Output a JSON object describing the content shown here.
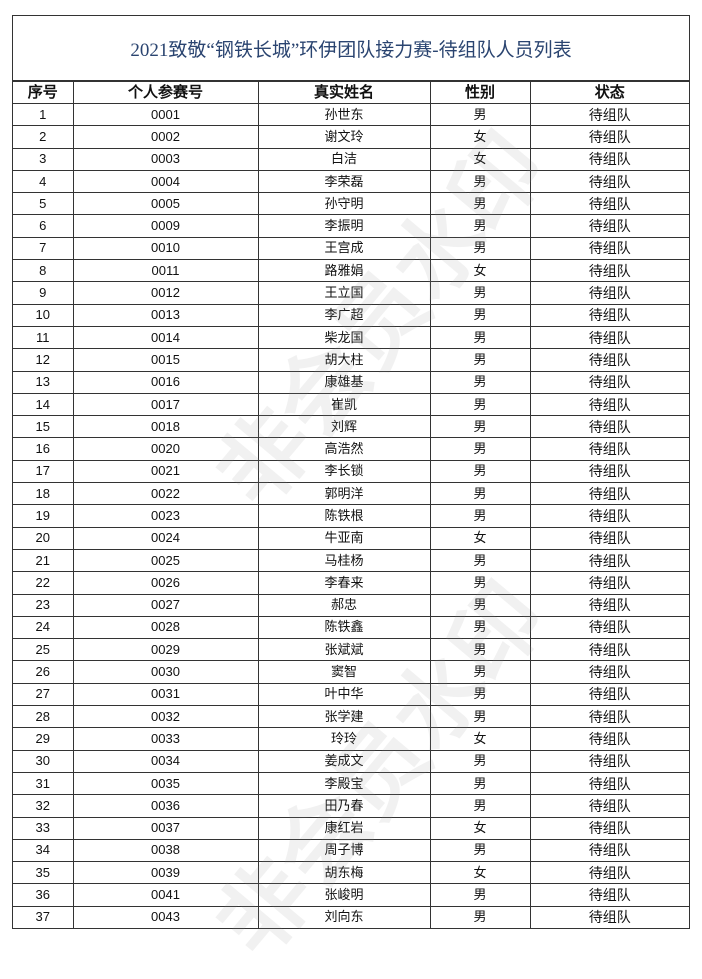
{
  "title": "2021致敬“钢铁长城”环伊团队接力赛-待组队人员列表",
  "watermark": "非会员水印",
  "columns": [
    "序号",
    "个人参赛号",
    "真实姓名",
    "性别",
    "状态"
  ],
  "rows": [
    [
      "1",
      "0001",
      "孙世东",
      "男",
      "待组队"
    ],
    [
      "2",
      "0002",
      "谢文玲",
      "女",
      "待组队"
    ],
    [
      "3",
      "0003",
      "白洁",
      "女",
      "待组队"
    ],
    [
      "4",
      "0004",
      "李荣磊",
      "男",
      "待组队"
    ],
    [
      "5",
      "0005",
      "孙守明",
      "男",
      "待组队"
    ],
    [
      "6",
      "0009",
      "李振明",
      "男",
      "待组队"
    ],
    [
      "7",
      "0010",
      "王宫成",
      "男",
      "待组队"
    ],
    [
      "8",
      "0011",
      "路雅娟",
      "女",
      "待组队"
    ],
    [
      "9",
      "0012",
      "王立国",
      "男",
      "待组队"
    ],
    [
      "10",
      "0013",
      "李广超",
      "男",
      "待组队"
    ],
    [
      "11",
      "0014",
      "柴龙国",
      "男",
      "待组队"
    ],
    [
      "12",
      "0015",
      "胡大柱",
      "男",
      "待组队"
    ],
    [
      "13",
      "0016",
      "康雄基",
      "男",
      "待组队"
    ],
    [
      "14",
      "0017",
      "崔凯",
      "男",
      "待组队"
    ],
    [
      "15",
      "0018",
      "刘辉",
      "男",
      "待组队"
    ],
    [
      "16",
      "0020",
      "高浩然",
      "男",
      "待组队"
    ],
    [
      "17",
      "0021",
      "李长锁",
      "男",
      "待组队"
    ],
    [
      "18",
      "0022",
      "郭明洋",
      "男",
      "待组队"
    ],
    [
      "19",
      "0023",
      "陈铁根",
      "男",
      "待组队"
    ],
    [
      "20",
      "0024",
      "牛亚南",
      "女",
      "待组队"
    ],
    [
      "21",
      "0025",
      "马桂杨",
      "男",
      "待组队"
    ],
    [
      "22",
      "0026",
      "李春来",
      "男",
      "待组队"
    ],
    [
      "23",
      "0027",
      "郝忠",
      "男",
      "待组队"
    ],
    [
      "24",
      "0028",
      "陈铁鑫",
      "男",
      "待组队"
    ],
    [
      "25",
      "0029",
      "张斌斌",
      "男",
      "待组队"
    ],
    [
      "26",
      "0030",
      "窦智",
      "男",
      "待组队"
    ],
    [
      "27",
      "0031",
      "叶中华",
      "男",
      "待组队"
    ],
    [
      "28",
      "0032",
      "张学建",
      "男",
      "待组队"
    ],
    [
      "29",
      "0033",
      "玲玲",
      "女",
      "待组队"
    ],
    [
      "30",
      "0034",
      "姜成文",
      "男",
      "待组队"
    ],
    [
      "31",
      "0035",
      "李殿宝",
      "男",
      "待组队"
    ],
    [
      "32",
      "0036",
      "田乃春",
      "男",
      "待组队"
    ],
    [
      "33",
      "0037",
      "康红岩",
      "女",
      "待组队"
    ],
    [
      "34",
      "0038",
      "周子博",
      "男",
      "待组队"
    ],
    [
      "35",
      "0039",
      "胡东梅",
      "女",
      "待组队"
    ],
    [
      "36",
      "0041",
      "张峻明",
      "男",
      "待组队"
    ],
    [
      "37",
      "0043",
      "刘向东",
      "男",
      "待组队"
    ]
  ]
}
